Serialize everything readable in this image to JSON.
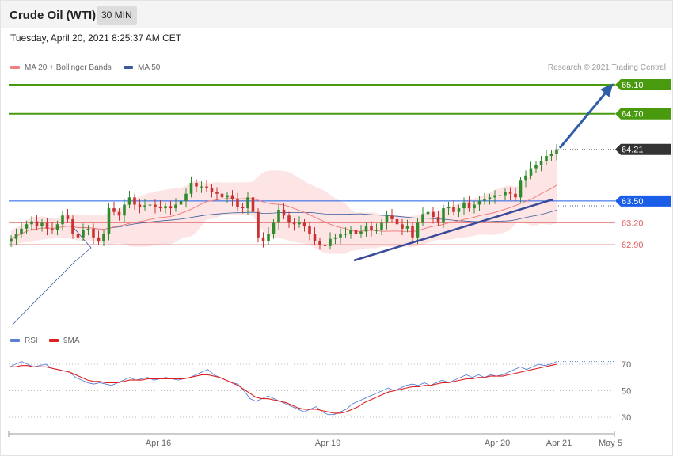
{
  "header": {
    "title": "Crude Oil (WTI)",
    "timeframe": "30 MIN",
    "datetime": "Tuesday, April 20, 2021 8:25:37 AM CET"
  },
  "legend": {
    "items": [
      {
        "label": "MA 20 + Bollinger Bands",
        "color": "#f08080"
      },
      {
        "label": "MA 50",
        "color": "#3a5a9a"
      }
    ],
    "copyright": "Research © 2021 Trading Central"
  },
  "rsi_legend": {
    "items": [
      {
        "label": "RSI",
        "color": "#5b7fd6"
      },
      {
        "label": "9MA",
        "color": "#e02020"
      }
    ]
  },
  "x_axis": {
    "labels": [
      "Apr 16",
      "Apr 19",
      "Apr 20",
      "Apr 21",
      "May 5"
    ]
  },
  "levels": [
    {
      "value": 65.1,
      "label": "65.10",
      "style": "resistance",
      "color": "#4a9a10"
    },
    {
      "value": 64.7,
      "label": "64.70",
      "style": "resistance",
      "color": "#4a9a10"
    },
    {
      "value": 64.21,
      "label": "64.21",
      "style": "last-price",
      "color": "#333333"
    },
    {
      "value": 63.5,
      "label": "63.50",
      "style": "pivot",
      "color": "#1a5ee8"
    },
    {
      "value": 63.2,
      "label": "63.20",
      "style": "support",
      "color": "#e06060"
    },
    {
      "value": 62.9,
      "label": "62.90",
      "style": "support",
      "color": "#e06060"
    }
  ],
  "colors": {
    "up_candle": "#2e8b2e",
    "down_candle": "#c83232",
    "bollinger_fill": "#fde0e0",
    "ma20": "#f08080",
    "ma50": "#3a5a9a",
    "trendline": "#3a4a9a",
    "arrow": "#2f5ea8",
    "rsi": "#5b7fd6",
    "rsi_ma": "#e02020"
  },
  "chart_data": [
    {
      "type": "candlestick",
      "series": [
        {
          "name": "Crude Oil (WTI)",
          "values": [
            62.98,
            63.05,
            63.12,
            63.18,
            63.22,
            63.15,
            63.2,
            63.12,
            63.1,
            63.18,
            63.3,
            63.25,
            63.05,
            63.0,
            63.1,
            63.12,
            63.0,
            62.95,
            63.05,
            63.4,
            63.35,
            63.3,
            63.45,
            63.55,
            63.45,
            63.42,
            63.44,
            63.45,
            63.42,
            63.4,
            63.43,
            63.4,
            63.45,
            63.5,
            63.6,
            63.75,
            63.7,
            63.7,
            63.68,
            63.62,
            63.6,
            63.55,
            63.58,
            63.52,
            63.42,
            63.4,
            63.55,
            63.35,
            63.0,
            62.95,
            63.05,
            63.2,
            63.38,
            63.3,
            63.2,
            63.18,
            63.2,
            63.15,
            63.05,
            62.95,
            62.9,
            62.88,
            62.98,
            63.0,
            63.05,
            63.05,
            63.1,
            63.05,
            63.08,
            63.15,
            63.1,
            63.1,
            63.2,
            63.3,
            63.25,
            63.18,
            63.12,
            63.15,
            63.0,
            63.2,
            63.32,
            63.35,
            63.28,
            63.2,
            63.4,
            63.42,
            63.35,
            63.4,
            63.48,
            63.4,
            63.45,
            63.5,
            63.52,
            63.55,
            63.58,
            63.58,
            63.62,
            63.6,
            63.55,
            63.78,
            63.85,
            63.95,
            64.0,
            64.05,
            64.12,
            64.15,
            64.21
          ]
        }
      ],
      "xlabel": "",
      "ylabel": ""
    },
    {
      "type": "line",
      "series": [
        {
          "name": "RSI",
          "values": [
            68,
            70,
            72,
            70,
            68,
            69,
            70,
            67,
            66,
            65,
            64,
            60,
            58,
            56,
            55,
            56,
            55,
            54,
            56,
            58,
            60,
            58,
            59,
            60,
            58,
            59,
            60,
            59,
            58,
            59,
            60,
            62,
            64,
            66,
            62,
            60,
            58,
            56,
            55,
            50,
            44,
            42,
            44,
            46,
            44,
            42,
            40,
            38,
            36,
            34,
            36,
            38,
            34,
            32,
            32,
            34,
            36,
            40,
            42,
            44,
            46,
            48,
            50,
            52,
            50,
            52,
            54,
            55,
            54,
            56,
            54,
            56,
            58,
            56,
            58,
            60,
            62,
            60,
            62,
            60,
            62,
            61,
            62,
            64,
            66,
            68,
            66,
            68,
            70,
            69,
            70,
            72
          ]
        },
        {
          "name": "9MA",
          "values": [
            68,
            68,
            69,
            69,
            68,
            68,
            68,
            67,
            66,
            65,
            64,
            62,
            60,
            58,
            57,
            57,
            56,
            56,
            56,
            57,
            58,
            58,
            58,
            59,
            59,
            59,
            59,
            59,
            59,
            59,
            60,
            61,
            62,
            62,
            61,
            60,
            58,
            56,
            54,
            51,
            48,
            45,
            44,
            44,
            43,
            42,
            41,
            39,
            37,
            36,
            36,
            36,
            35,
            34,
            33,
            33,
            34,
            36,
            38,
            41,
            43,
            45,
            47,
            49,
            50,
            51,
            52,
            53,
            53,
            54,
            54,
            55,
            56,
            56,
            57,
            58,
            59,
            59,
            60,
            60,
            61,
            61,
            61,
            62,
            63,
            64,
            65,
            66,
            67,
            68,
            69,
            70
          ]
        }
      ],
      "ylim": [
        20,
        80
      ],
      "ticks": [
        70,
        50,
        30
      ],
      "xlabel": "",
      "ylabel": ""
    }
  ]
}
